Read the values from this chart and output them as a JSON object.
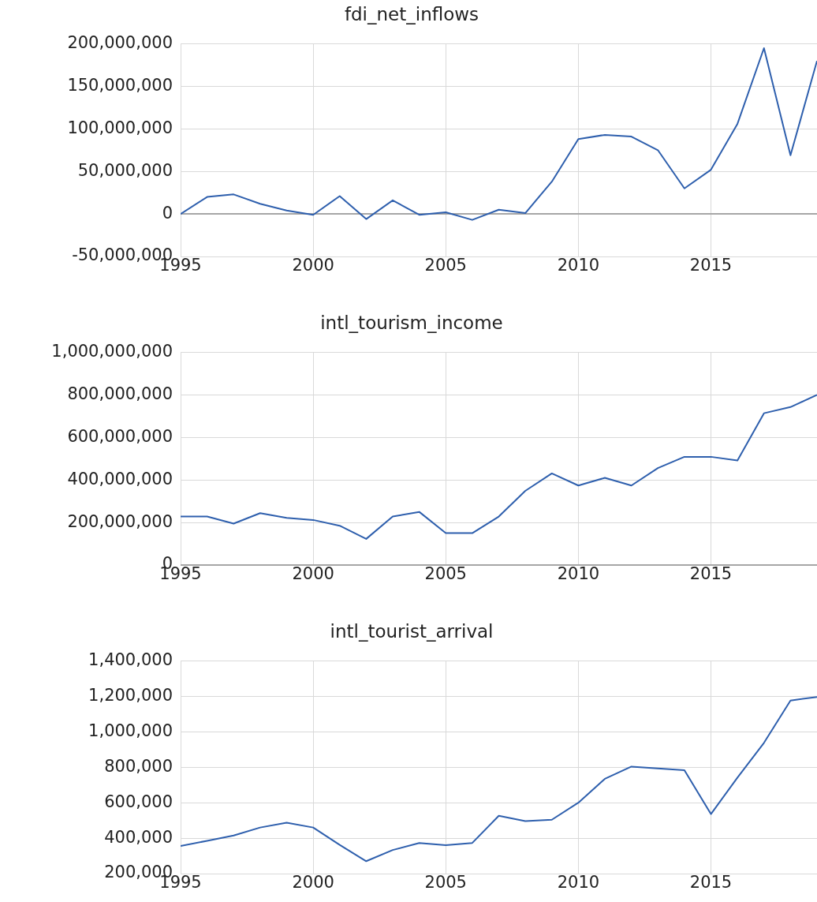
{
  "chart_data": [
    {
      "type": "line",
      "title": "fdi_net_inflows",
      "x": [
        1995,
        1996,
        1997,
        1998,
        1999,
        2000,
        2001,
        2002,
        2003,
        2004,
        2005,
        2006,
        2007,
        2008,
        2009,
        2010,
        2011,
        2012,
        2013,
        2014,
        2015,
        2016,
        2017,
        2018,
        2019
      ],
      "series": [
        {
          "color": "#2e5fad",
          "values": [
            0,
            20000000,
            23000000,
            12000000,
            4000000,
            -1000000,
            21000000,
            -6000000,
            16000000,
            -1000000,
            2000000,
            -7000000,
            5000000,
            1000000,
            38000000,
            88000000,
            93000000,
            91000000,
            75000000,
            30000000,
            52000000,
            106000000,
            195000000,
            69000000,
            180000000
          ]
        }
      ],
      "xlim": [
        1995,
        2019
      ],
      "xticks": [
        1995,
        2000,
        2005,
        2010,
        2015
      ],
      "ylim": [
        -50000000,
        200000000
      ],
      "yticks": [
        {
          "value": -50000000,
          "label": "-50,000,000"
        },
        0,
        {
          "value": 50000000,
          "label": "50,000,000"
        },
        {
          "value": 100000000,
          "label": "100,000,000"
        },
        {
          "value": 150000000,
          "label": "150,000,000"
        },
        {
          "value": 200000000,
          "label": "200,000,000"
        }
      ],
      "grid": true
    },
    {
      "type": "line",
      "title": "intl_tourism_income",
      "x": [
        1995,
        1996,
        1997,
        1998,
        1999,
        2000,
        2001,
        2002,
        2003,
        2004,
        2005,
        2006,
        2007,
        2008,
        2009,
        2010,
        2011,
        2012,
        2013,
        2014,
        2015,
        2016,
        2017,
        2018,
        2019
      ],
      "series": [
        {
          "color": "#2e5fad",
          "values": [
            228000000,
            228000000,
            195000000,
            244000000,
            222000000,
            212000000,
            185000000,
            123000000,
            228000000,
            250000000,
            150000000,
            150000000,
            228000000,
            349000000,
            431000000,
            374000000,
            410000000,
            374000000,
            456000000,
            509000000,
            509000000,
            492000000,
            714000000,
            743000000,
            800000000
          ]
        }
      ],
      "xlim": [
        1995,
        2019
      ],
      "xticks": [
        1995,
        2000,
        2005,
        2010,
        2015
      ],
      "ylim": [
        0,
        1000000000
      ],
      "yticks": [
        0,
        {
          "value": 200000000,
          "label": "200,000,000"
        },
        {
          "value": 400000000,
          "label": "400,000,000"
        },
        {
          "value": 600000000,
          "label": "600,000,000"
        },
        {
          "value": 800000000,
          "label": "800,000,000"
        },
        {
          "value": 1000000000,
          "label": "1,000,000,000"
        }
      ],
      "grid": true
    },
    {
      "type": "line",
      "title": "intl_tourist_arrival",
      "x": [
        1995,
        1996,
        1997,
        1998,
        1999,
        2000,
        2001,
        2002,
        2003,
        2004,
        2005,
        2006,
        2007,
        2008,
        2009,
        2010,
        2011,
        2012,
        2013,
        2014,
        2015,
        2016,
        2017,
        2018,
        2019
      ],
      "series": [
        {
          "color": "#2e5fad",
          "values": [
            356000,
            385000,
            415000,
            460000,
            487000,
            460000,
            362000,
            270000,
            333000,
            373000,
            360000,
            373000,
            526000,
            496000,
            504000,
            600000,
            735000,
            804000,
            794000,
            784000,
            536000,
            742000,
            938000,
            1177000,
            1197000
          ]
        }
      ],
      "xlim": [
        1995,
        2019
      ],
      "xticks": [
        1995,
        2000,
        2005,
        2010,
        2015
      ],
      "ylim": [
        200000,
        1400000
      ],
      "yticks": [
        {
          "value": 200000,
          "label": "200,000"
        },
        {
          "value": 400000,
          "label": "400,000"
        },
        {
          "value": 600000,
          "label": "600,000"
        },
        {
          "value": 800000,
          "label": "800,000"
        },
        {
          "value": 1000000,
          "label": "1,000,000"
        },
        {
          "value": 1200000,
          "label": "1,200,000"
        },
        {
          "value": 1400000,
          "label": "1,400,000"
        }
      ],
      "grid": true
    }
  ]
}
